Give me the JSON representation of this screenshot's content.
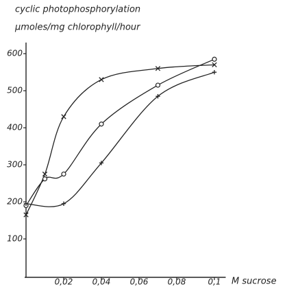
{
  "chart_data": {
    "type": "line",
    "title": "cyclic photophosphorylation",
    "ylabel": "μmoles/mg chlorophyll/hour",
    "xlabel": "M sucrose",
    "xlim": [
      0,
      0.106
    ],
    "ylim": [
      0,
      630
    ],
    "xticks": [
      {
        "value": 0.02,
        "label": "0,02"
      },
      {
        "value": 0.04,
        "label": "0,04"
      },
      {
        "value": 0.06,
        "label": "0,06"
      },
      {
        "value": 0.08,
        "label": "0,08"
      },
      {
        "value": 0.1,
        "label": "0,1"
      }
    ],
    "yticks": [
      100,
      200,
      300,
      400,
      500,
      600
    ],
    "series": [
      {
        "marker": "x",
        "color": "#222222",
        "x": [
          0,
          0.01,
          0.02,
          0.04,
          0.07,
          0.1
        ],
        "values": [
          165,
          275,
          430,
          530,
          560,
          570
        ]
      },
      {
        "marker": "o",
        "color": "#222222",
        "x": [
          0,
          0.01,
          0.02,
          0.04,
          0.07,
          0.1
        ],
        "values": [
          190,
          262,
          275,
          410,
          515,
          585
        ]
      },
      {
        "marker": "+",
        "color": "#222222",
        "x": [
          0,
          0.02,
          0.04,
          0.07,
          0.1
        ],
        "values": [
          195,
          195,
          305,
          485,
          550
        ]
      }
    ]
  }
}
